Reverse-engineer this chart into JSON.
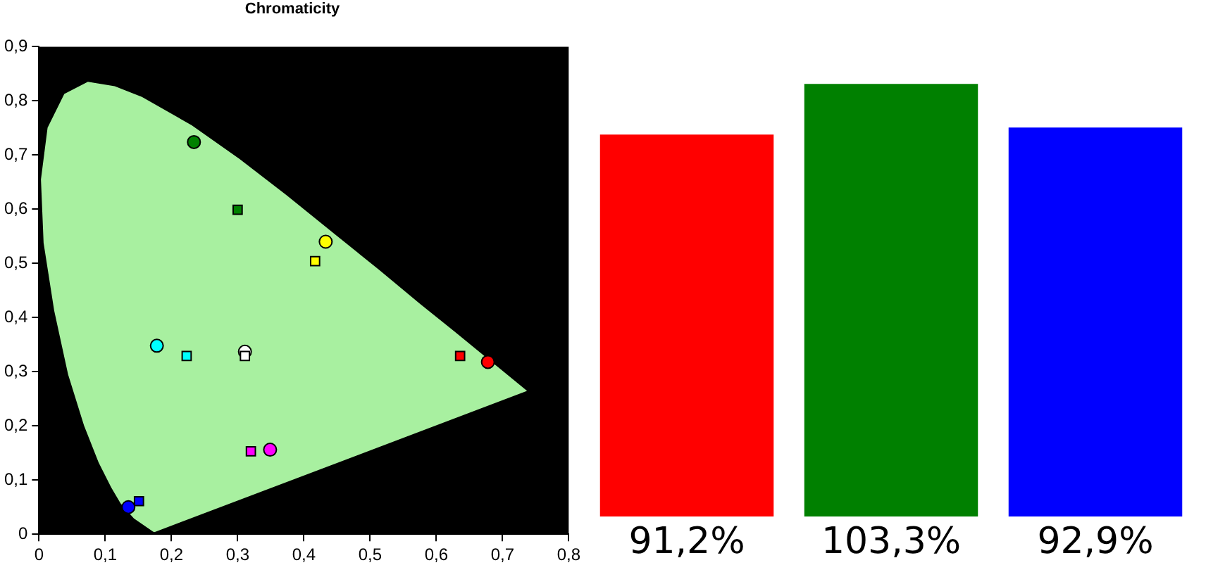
{
  "chart_data": [
    {
      "type": "scatter",
      "title": "Chromaticity",
      "xlim": [
        0,
        0.8
      ],
      "ylim": [
        0,
        0.9
      ],
      "xticks": [
        0,
        {
          "value": 0.1,
          "label": "0,1"
        },
        {
          "value": 0.2,
          "label": "0,2"
        },
        {
          "value": 0.3,
          "label": "0,3"
        },
        {
          "value": 0.4,
          "label": "0,4"
        },
        {
          "value": 0.5,
          "label": "0,5"
        },
        {
          "value": 0.6,
          "label": "0,6"
        },
        {
          "value": 0.7,
          "label": "0,7"
        },
        {
          "value": 0.8,
          "label": "0,8"
        }
      ],
      "yticks": [
        0,
        {
          "value": 0.1,
          "label": "0,1"
        },
        {
          "value": 0.2,
          "label": "0,2"
        },
        {
          "value": 0.3,
          "label": "0,3"
        },
        {
          "value": 0.4,
          "label": "0,4"
        },
        {
          "value": 0.5,
          "label": "0,5"
        },
        {
          "value": 0.6,
          "label": "0,6"
        },
        {
          "value": 0.7,
          "label": "0,7"
        },
        {
          "value": 0.8,
          "label": "0,8"
        },
        {
          "value": 0.9,
          "label": "0,9"
        }
      ],
      "grid": false,
      "legend": false,
      "series": [
        {
          "type": "area",
          "color": "#a8f0a0",
          "x": [
            0.174,
            0.144,
            0.124,
            0.11,
            0.091,
            0.069,
            0.045,
            0.024,
            0.008,
            0.004,
            0.014,
            0.039,
            0.074,
            0.114,
            0.155,
            0.23,
            0.302,
            0.373,
            0.444,
            0.513,
            0.575,
            0.627,
            0.692,
            0.735,
            0.174
          ],
          "values": [
            0.005,
            0.03,
            0.058,
            0.087,
            0.133,
            0.201,
            0.295,
            0.413,
            0.538,
            0.655,
            0.75,
            0.812,
            0.834,
            0.826,
            0.806,
            0.754,
            0.692,
            0.625,
            0.555,
            0.487,
            0.424,
            0.373,
            0.308,
            0.265,
            0.005
          ]
        },
        {
          "type": "scatter",
          "marker": "square",
          "x": [
            0.636,
            0.3,
            0.151,
            0.223,
            0.32,
            0.417,
            0.311
          ],
          "values": [
            0.329,
            0.599,
            0.061,
            0.329,
            0.153,
            0.504,
            0.329
          ],
          "colors": [
            "#ff0000",
            "#008000",
            "#0000ff",
            "#00ffff",
            "#ff00ff",
            "#ffff00",
            "#ffffff"
          ]
        },
        {
          "type": "scatter",
          "marker": "circle",
          "x": [
            0.678,
            0.234,
            0.135,
            0.178,
            0.349,
            0.433,
            0.311
          ],
          "values": [
            0.318,
            0.724,
            0.05,
            0.348,
            0.156,
            0.54,
            0.337
          ],
          "colors": [
            "#ff0000",
            "#008000",
            "#0000ff",
            "#00ffff",
            "#ff00ff",
            "#ffff00",
            "#ffffff"
          ]
        }
      ]
    },
    {
      "type": "bar",
      "categories": [
        null,
        null,
        null
      ],
      "values": [
        91.2,
        103.3,
        92.9
      ],
      "colors": [
        "#ff0000",
        "#008000",
        "#0000ff"
      ],
      "value_labels": [
        "91,2%",
        "103,3%",
        "92,9%"
      ],
      "tick_labels": false,
      "grid": false,
      "legend": false
    }
  ]
}
